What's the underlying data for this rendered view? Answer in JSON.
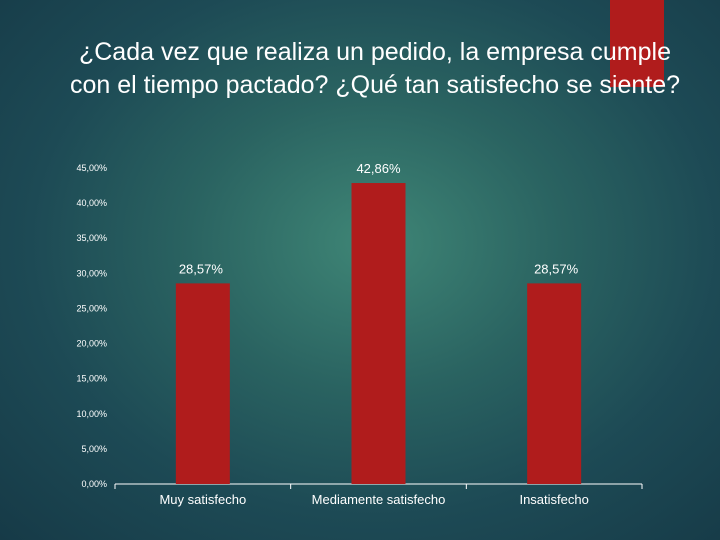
{
  "slide": {
    "title": "¿Cada vez que realiza un pedido, la empresa cumple con el tiempo pactado? ¿Qué tan satisfecho se siente?"
  },
  "colors": {
    "accent": "#b01c1c",
    "bar": "#b01c1c",
    "axis": "#ffffff",
    "text": "#ffffff"
  },
  "chart_data": {
    "type": "bar",
    "title": "",
    "xlabel": "",
    "ylabel": "",
    "categories": [
      "Muy satisfecho",
      "Mediamente satisfecho",
      "Insatisfecho"
    ],
    "values": [
      28.57,
      42.86,
      28.57
    ],
    "data_labels": [
      "28,57%",
      "42,86%",
      "28,57%"
    ],
    "ylim": [
      0,
      45
    ],
    "ytick_values": [
      0,
      5,
      10,
      15,
      20,
      25,
      30,
      35,
      40,
      45
    ],
    "ytick_labels": [
      "0,00%",
      "5,00%",
      "10,00%",
      "15,00%",
      "20,00%",
      "25,00%",
      "30,00%",
      "35,00%",
      "40,00%",
      "45,00%"
    ],
    "grid": false,
    "legend": "none"
  }
}
